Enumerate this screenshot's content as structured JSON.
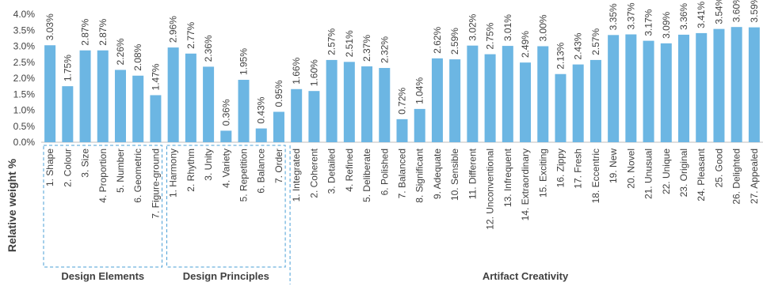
{
  "chart_data": {
    "type": "bar",
    "ylabel": "Relative weight %",
    "ylim": [
      0,
      4
    ],
    "ytick_step": 0.5,
    "grid": false,
    "bar_color": "#6cb6e3",
    "categories": [
      "1. Shape",
      "2. Colour",
      "3. Size",
      "4. Proportion",
      "5. Number",
      "6. Geometric",
      "7. Figure-ground",
      "1. Harmony",
      "2. Rhythm",
      "3. Unity",
      "4. Variety",
      "5. Repetition",
      "6. Balance",
      "7. Order",
      "1. Integrated",
      "2. Coherent",
      "3. Detailed",
      "4. Refined",
      "5. Deliberate",
      "6. Polished",
      "7. Balanced",
      "8. Significant",
      "9. Adequate",
      "10. Sensible",
      "11. Different",
      "12. Unconventional",
      "13. Infrequent",
      "14. Extraordinary",
      "15. Exciting",
      "16. Zippy",
      "17. Fresh",
      "18. Eccentric",
      "19. New",
      "20. Novel",
      "21. Unusual",
      "22. Unique",
      "23. Original",
      "24. Pleasant",
      "25. Good",
      "26. Delighted",
      "27. Appealed"
    ],
    "values": [
      3.03,
      1.75,
      2.87,
      2.87,
      2.26,
      2.08,
      1.47,
      2.96,
      2.77,
      2.36,
      0.36,
      1.95,
      0.43,
      0.95,
      1.66,
      1.6,
      2.57,
      2.51,
      2.37,
      2.32,
      0.72,
      1.04,
      2.62,
      2.59,
      3.02,
      2.75,
      3.01,
      2.49,
      3.0,
      2.13,
      2.43,
      2.57,
      3.35,
      3.37,
      3.17,
      3.09,
      3.36,
      3.41,
      3.54,
      3.6,
      3.59
    ],
    "data_labels": [
      "3.03%",
      "1.75%",
      "2.87%",
      "2.87%",
      "2.26%",
      "2.08%",
      "1.47%",
      "2.96%",
      "2.77%",
      "2.36%",
      "0.36%",
      "1.95%",
      "0.43%",
      "0.95%",
      "1.66%",
      "1.60%",
      "2.57%",
      "2.51%",
      "2.37%",
      "2.32%",
      "0.72%",
      "1.04%",
      "2.62%",
      "2.59%",
      "3.02%",
      "2.75%",
      "3.01%",
      "2.49%",
      "3.00%",
      "2.13%",
      "2.43%",
      "2.57%",
      "3.35%",
      "3.37%",
      "3.17%",
      "3.09%",
      "3.36%",
      "3.41%",
      "3.54%",
      "3.60%",
      "3.59%"
    ],
    "yticks": [
      "0.0%",
      "0.5%",
      "1.0%",
      "1.5%",
      "2.0%",
      "2.5%",
      "3.0%",
      "3.5%",
      "4.0%"
    ],
    "groups": [
      {
        "name": "Design Elements",
        "count": 7
      },
      {
        "name": "Design Principles",
        "count": 7
      },
      {
        "name": "Artifact Creativity",
        "count": 27
      }
    ]
  }
}
